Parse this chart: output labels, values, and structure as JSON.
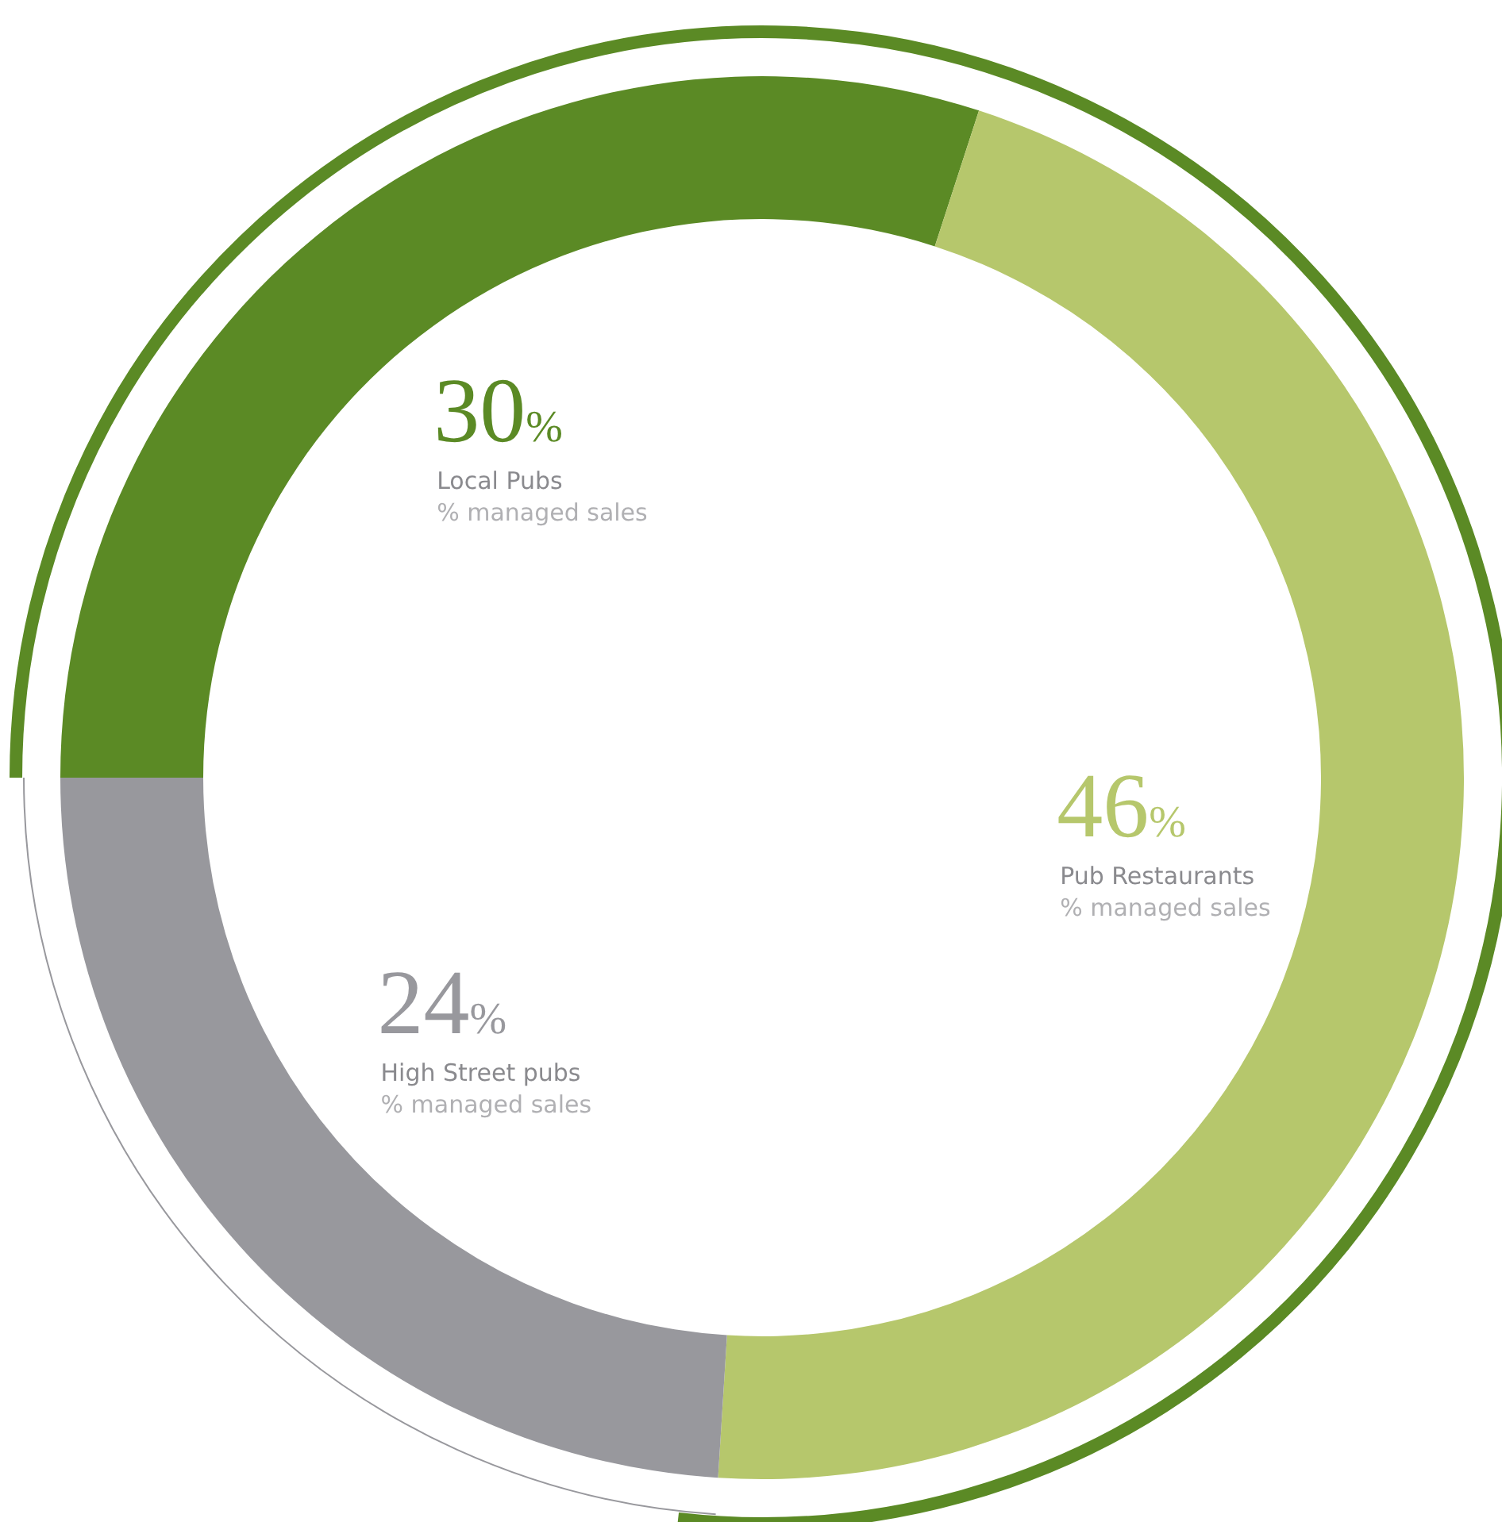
{
  "chart_data": {
    "type": "donut",
    "categories": [
      "Local Pubs",
      "Pub Restaurants",
      "High Street pubs"
    ],
    "values": [
      30,
      46,
      24
    ],
    "colors": [
      "#5b8a25",
      "#b6c76c",
      "#98989d"
    ],
    "value_labels": [
      "30%",
      "46%",
      "24%"
    ],
    "annotations": [
      "% managed sales",
      "% managed sales",
      "% managed sales"
    ]
  }
}
